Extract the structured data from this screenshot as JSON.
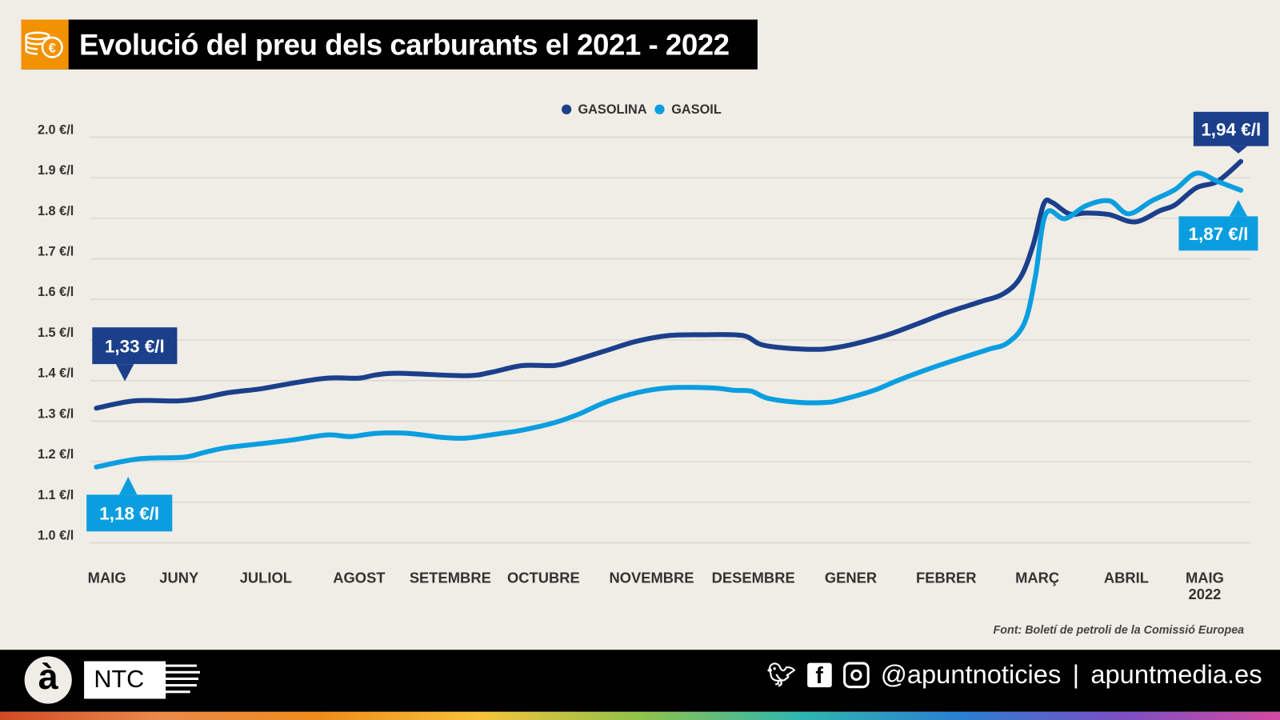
{
  "header": {
    "title": "Evolució del preu dels carburants el 2021 - 2022",
    "icon": "euro-coins-icon"
  },
  "colors": {
    "gasolina": "#1b3f8b",
    "gasoil": "#0a9ee0",
    "accent": "#f39200"
  },
  "chart_data": {
    "type": "line",
    "title": "Evolució del preu dels carburants el 2021 - 2022",
    "xlabel": "",
    "ylabel": "",
    "ylim": [
      1.0,
      2.0
    ],
    "xlim": [
      0,
      54
    ],
    "x_unit": "weeks since May 2021",
    "y_ticks": [
      "2.0 €/l",
      "1.9 €/l",
      "1.8 €/l",
      "1.7 €/l",
      "1.6 €/l",
      "1.5 €/l",
      "1.4 €/l",
      "1.3 €/l",
      "1.2 €/l",
      "1.1 €/l",
      "1.0 €/l"
    ],
    "x_ticks": [
      {
        "label": "MAIG",
        "x": 0.5
      },
      {
        "label": "JUNY",
        "x": 3.9
      },
      {
        "label": "JULIOL",
        "x": 8.0
      },
      {
        "label": "AGOST",
        "x": 12.4
      },
      {
        "label": "SETEMBRE",
        "x": 16.7
      },
      {
        "label": "OCTUBRE",
        "x": 21.1
      },
      {
        "label": "NOVEMBRE",
        "x": 26.2
      },
      {
        "label": "DESEMBRE",
        "x": 31.0
      },
      {
        "label": "GENER",
        "x": 35.6
      },
      {
        "label": "FEBRER",
        "x": 40.1
      },
      {
        "label": "MARÇ",
        "x": 44.4
      },
      {
        "label": "ABRIL",
        "x": 48.6
      },
      {
        "label": "MAIG",
        "x": 52.3,
        "sub": "2022"
      }
    ],
    "legend": {
      "placement": "top-center"
    },
    "grid": true,
    "series": [
      {
        "name": "GASOLINA",
        "start_label": "1,33 €/l",
        "end_label": "1,94 €/l",
        "x": [
          0,
          1.8,
          3.9,
          5.1,
          6.2,
          7.8,
          9.3,
          10.9,
          12.4,
          13.2,
          14.3,
          17.4,
          18.6,
          20.1,
          21.6,
          22.4,
          24.0,
          25.5,
          27.0,
          28.6,
          30.5,
          31.5,
          33.6,
          35.1,
          37.1,
          38.6,
          40.1,
          41.7,
          42.8,
          43.6,
          44.2,
          44.7,
          45.1,
          45.9,
          46.7,
          47.8,
          49.0,
          50.2,
          50.9,
          51.9,
          52.9,
          54.0
        ],
        "y": [
          1.332,
          1.35,
          1.35,
          1.358,
          1.37,
          1.38,
          1.394,
          1.406,
          1.406,
          1.414,
          1.418,
          1.412,
          1.42,
          1.437,
          1.437,
          1.447,
          1.473,
          1.497,
          1.511,
          1.513,
          1.511,
          1.487,
          1.477,
          1.483,
          1.509,
          1.537,
          1.567,
          1.594,
          1.614,
          1.654,
          1.734,
          1.835,
          1.839,
          1.811,
          1.813,
          1.809,
          1.791,
          1.819,
          1.833,
          1.875,
          1.891,
          1.94
        ]
      },
      {
        "name": "GASOIL",
        "start_label": "1,18 €/l",
        "end_label": "1,87 €/l",
        "x": [
          0,
          2.0,
          4.1,
          5.1,
          6.2,
          8.2,
          9.3,
          10.9,
          12.0,
          13.2,
          14.7,
          16.3,
          17.4,
          18.6,
          20.1,
          21.6,
          22.8,
          24.0,
          25.5,
          27.0,
          29.0,
          30.1,
          30.9,
          31.7,
          33.2,
          34.4,
          35.1,
          36.7,
          37.8,
          39.4,
          40.9,
          42.1,
          43.0,
          43.8,
          44.3,
          44.8,
          45.7,
          46.7,
          47.8,
          48.7,
          49.8,
          50.9,
          51.9,
          52.9,
          54.0
        ],
        "y": [
          1.187,
          1.207,
          1.211,
          1.223,
          1.235,
          1.247,
          1.254,
          1.266,
          1.262,
          1.27,
          1.27,
          1.26,
          1.258,
          1.266,
          1.278,
          1.296,
          1.318,
          1.346,
          1.37,
          1.382,
          1.382,
          1.376,
          1.374,
          1.356,
          1.346,
          1.346,
          1.352,
          1.376,
          1.4,
          1.431,
          1.457,
          1.477,
          1.493,
          1.543,
          1.654,
          1.811,
          1.799,
          1.831,
          1.843,
          1.811,
          1.843,
          1.871,
          1.911,
          1.891,
          1.869
        ]
      }
    ]
  },
  "source": "Font: Boletí de petroli de la Comissió Europea",
  "footer": {
    "logo_a": "à",
    "logo_ntc": "NTC",
    "handle": "@apuntnoticies",
    "separator": "|",
    "site": "apuntmedia.es",
    "icons": [
      "twitter-icon",
      "facebook-icon",
      "instagram-icon"
    ]
  }
}
